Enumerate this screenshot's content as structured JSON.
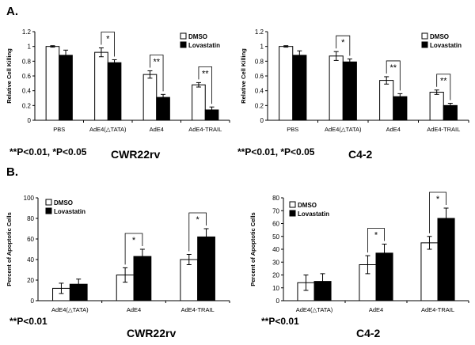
{
  "figure": {
    "panel_a": "A.",
    "panel_b": "B.",
    "footnote_a": "**P<0.01, *P<0.05",
    "footnote_b": "**P<0.01"
  },
  "colors": {
    "dmso": "#ffffff",
    "lovastatin": "#000000",
    "axis": "#000000",
    "border": "#000000"
  },
  "chart_data": [
    {
      "id": "a-left",
      "type": "bar",
      "cell_label": "CWR22rv",
      "ylabel": "Relative Cell Killing",
      "categories": [
        "PBS",
        "AdE4(△TATA)",
        "AdE4",
        "AdE4-TRAIL"
      ],
      "series": [
        {
          "name": "DMSO",
          "values": [
            1.0,
            0.92,
            0.62,
            0.48
          ],
          "errors": [
            0.01,
            0.06,
            0.05,
            0.03
          ]
        },
        {
          "name": "Lovastatin",
          "values": [
            0.88,
            0.78,
            0.31,
            0.14
          ],
          "errors": [
            0.07,
            0.04,
            0.04,
            0.04
          ]
        }
      ],
      "ylim": [
        0,
        1.2
      ],
      "yticks": [
        0,
        0.2,
        0.4,
        0.6,
        0.8,
        1,
        1.2
      ],
      "ytick_labels": [
        "0",
        "0.2",
        "0.4",
        "0.6",
        "0.8",
        "1",
        "1.2"
      ],
      "significance": [
        {
          "category": 1,
          "label": "*"
        },
        {
          "category": 2,
          "label": "**"
        },
        {
          "category": 3,
          "label": "**"
        }
      ],
      "legend": "top-right"
    },
    {
      "id": "a-right",
      "type": "bar",
      "cell_label": "C4-2",
      "ylabel": "Relative Cell Killing",
      "categories": [
        "PBS",
        "AdE4(△TATA)",
        "AdE4",
        "AdE4-TRAIL"
      ],
      "series": [
        {
          "name": "DMSO",
          "values": [
            1.0,
            0.87,
            0.54,
            0.38
          ],
          "errors": [
            0.01,
            0.06,
            0.05,
            0.03
          ]
        },
        {
          "name": "Lovastatin",
          "values": [
            0.88,
            0.79,
            0.32,
            0.2
          ],
          "errors": [
            0.06,
            0.04,
            0.04,
            0.03
          ]
        }
      ],
      "ylim": [
        0,
        1.2
      ],
      "yticks": [
        0,
        0.2,
        0.4,
        0.6,
        0.8,
        1,
        1.2
      ],
      "ytick_labels": [
        "0",
        "0.2",
        "0.4",
        "0.6",
        "0.8",
        "1",
        "1.2"
      ],
      "significance": [
        {
          "category": 1,
          "label": "*"
        },
        {
          "category": 2,
          "label": "**"
        },
        {
          "category": 3,
          "label": "**"
        }
      ],
      "legend": "top-right"
    },
    {
      "id": "b-left",
      "type": "bar",
      "cell_label": "CWR22rv",
      "ylabel": "Percent of Apoptotic Cells",
      "categories": [
        "AdE4(△TATA)",
        "AdE4",
        "AdE4-TRAIL"
      ],
      "series": [
        {
          "name": "DMSO",
          "values": [
            12,
            25,
            40
          ],
          "errors": [
            5,
            7,
            5
          ]
        },
        {
          "name": "Lovastatin",
          "values": [
            16,
            43,
            62
          ],
          "errors": [
            5,
            7,
            8
          ]
        }
      ],
      "ylim": [
        0,
        100
      ],
      "yticks": [
        0,
        20,
        40,
        60,
        80,
        100
      ],
      "ytick_labels": [
        "0",
        "20",
        "40",
        "60",
        "80",
        "100"
      ],
      "significance": [
        {
          "category": 1,
          "label": "*"
        },
        {
          "category": 2,
          "label": "*"
        }
      ],
      "legend": "top-left"
    },
    {
      "id": "b-right",
      "type": "bar",
      "cell_label": "C4-2",
      "ylabel": "Percent of Apoptotic Cells",
      "categories": [
        "AdE4(△TATA)",
        "AdE4",
        "AdE4-TRAIL"
      ],
      "series": [
        {
          "name": "DMSO",
          "values": [
            14,
            28,
            45
          ],
          "errors": [
            6,
            7,
            5
          ]
        },
        {
          "name": "Lovastatin",
          "values": [
            15,
            37,
            64
          ],
          "errors": [
            6,
            7,
            8
          ]
        }
      ],
      "ylim": [
        0,
        80
      ],
      "yticks": [
        0,
        10,
        20,
        30,
        40,
        50,
        60,
        70,
        80
      ],
      "ytick_labels": [
        "0",
        "10",
        "20",
        "30",
        "40",
        "50",
        "60",
        "70",
        "80"
      ],
      "significance": [
        {
          "category": 1,
          "label": "*"
        },
        {
          "category": 2,
          "label": "*"
        }
      ],
      "legend": "top-left"
    }
  ]
}
